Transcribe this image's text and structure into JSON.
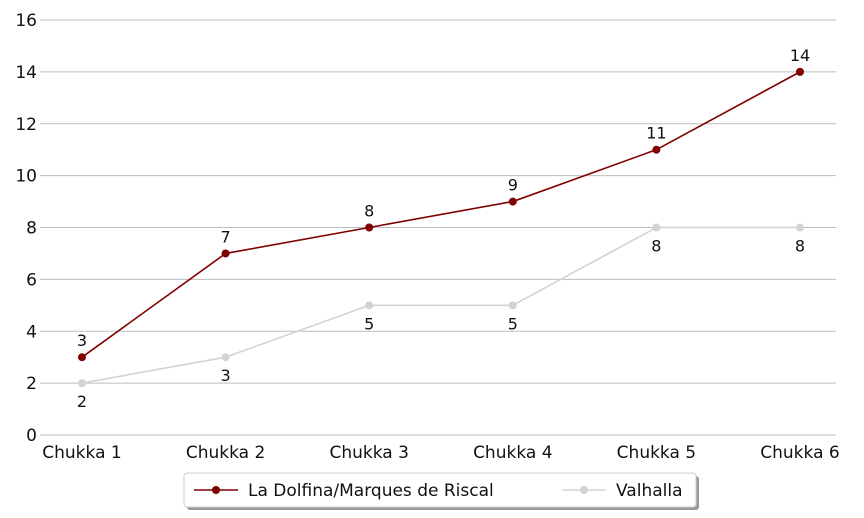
{
  "chart_data": {
    "type": "line",
    "categories": [
      "Chukka 1",
      "Chukka 2",
      "Chukka 3",
      "Chukka 4",
      "Chukka 5",
      "Chukka 6"
    ],
    "series": [
      {
        "name": "La Dolfina/Marques de Riscal",
        "values": [
          3,
          7,
          8,
          9,
          11,
          14
        ],
        "color": "#800000",
        "label_position": "above"
      },
      {
        "name": "Valhalla",
        "values": [
          2,
          3,
          5,
          5,
          8,
          8
        ],
        "color": "#d3d3d3",
        "label_position": "below"
      }
    ],
    "ylim": [
      0,
      16
    ],
    "yticks": [
      "0",
      "2",
      "4",
      "6",
      "8",
      "10",
      "12",
      "14",
      "16"
    ],
    "grid": "horizontal",
    "legend_placement": "bottom-center"
  }
}
